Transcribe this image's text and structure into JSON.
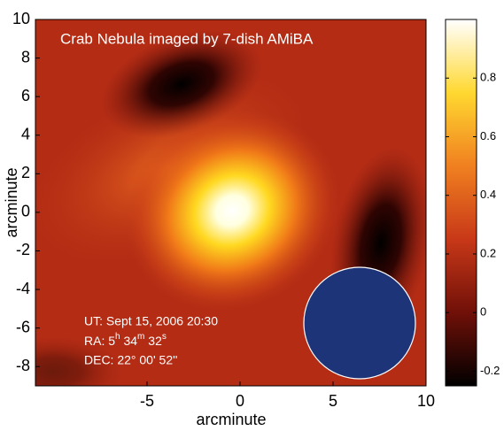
{
  "chart_data": {
    "type": "image",
    "title": "Crab Nebula imaged by 7-dish AMiBA",
    "xlabel": "arcminute",
    "ylabel": "arcminute",
    "xlim": [
      -11,
      10
    ],
    "xticks": [
      -5,
      0,
      5,
      10
    ],
    "ylim": [
      -9,
      10
    ],
    "yticks": [
      -8,
      -6,
      -4,
      -2,
      0,
      2,
      4,
      6,
      8,
      10
    ],
    "colorbar": {
      "lim": [
        -0.25,
        1.0
      ],
      "ticks": [
        -0.2,
        0,
        0.2,
        0.4,
        0.6,
        0.8
      ],
      "colormap": "hot"
    },
    "annotations": {
      "ut": "UT: Sept 15, 2006  20:30",
      "ra": [
        "RA: 5",
        "h",
        " 34",
        "m",
        " 32",
        "s"
      ],
      "dec": "DEC: 22° 00' 52''"
    }
  }
}
